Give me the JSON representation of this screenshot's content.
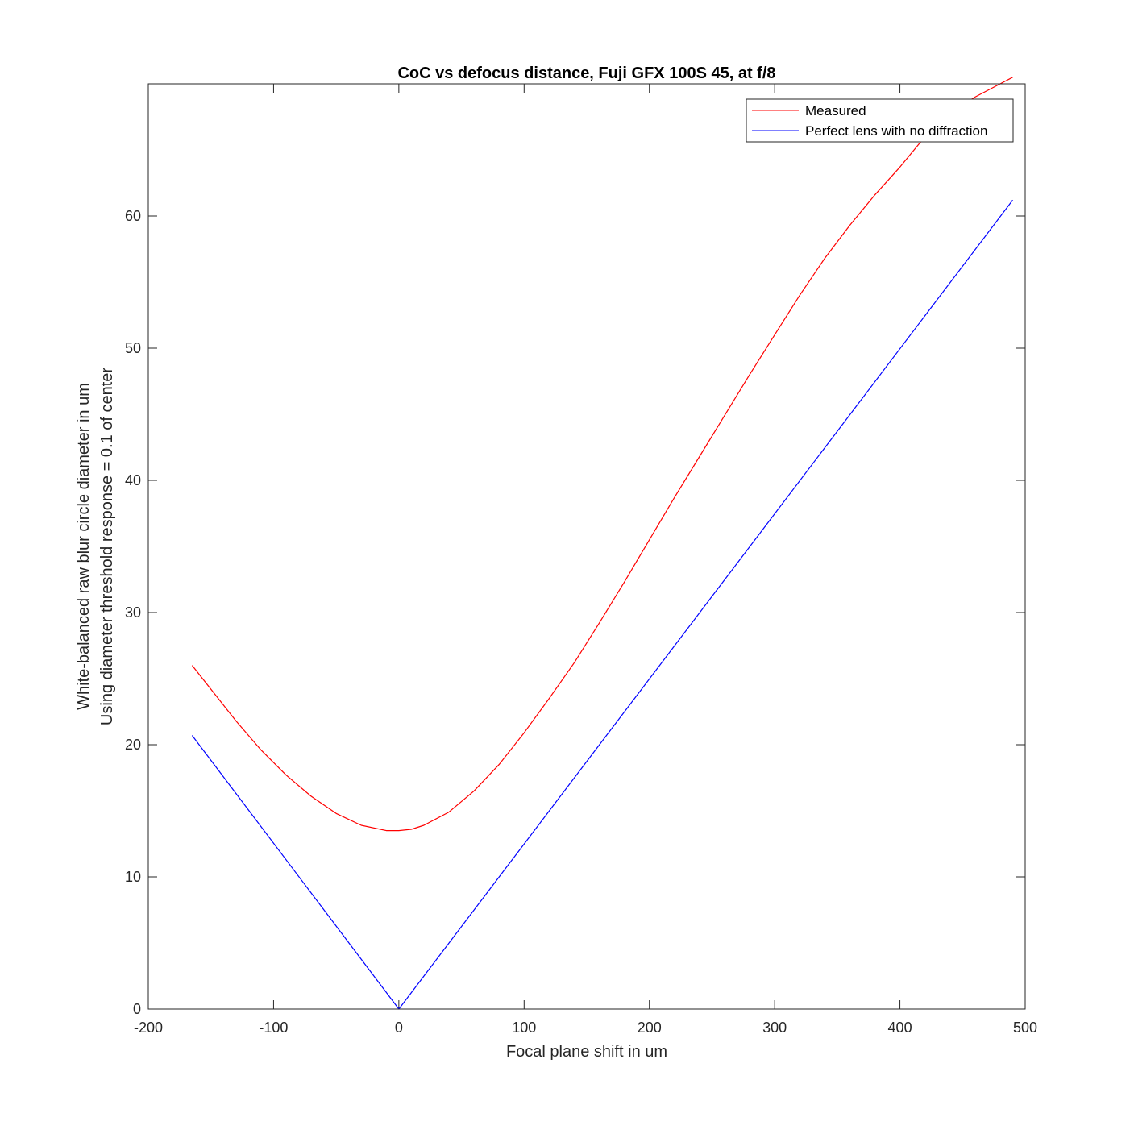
{
  "chart_data": {
    "type": "line",
    "title": "CoC vs defocus distance, Fuji GFX 100S 45, at f/8",
    "xlabel": "Focal plane shift in um",
    "ylabel": [
      "White-balanced raw blur circle diameter in um",
      "Using diameter threshold response = 0.1 of center"
    ],
    "xlim": [
      -200,
      500
    ],
    "ylim": [
      0,
      70
    ],
    "xticks": [
      -200,
      -100,
      0,
      100,
      200,
      300,
      400,
      500
    ],
    "yticks": [
      0,
      10,
      20,
      30,
      40,
      50,
      60
    ],
    "grid": false,
    "legend": "top-right",
    "series": [
      {
        "name": "Measured",
        "color": "#ff0000",
        "x": [
          -165,
          -150,
          -130,
          -110,
          -90,
          -70,
          -50,
          -30,
          -10,
          0,
          10,
          20,
          40,
          60,
          80,
          100,
          120,
          140,
          160,
          180,
          200,
          220,
          240,
          260,
          280,
          300,
          320,
          340,
          360,
          380,
          400,
          420,
          440,
          460,
          480,
          490
        ],
        "y": [
          26.0,
          24.2,
          21.8,
          19.6,
          17.7,
          16.1,
          14.8,
          13.9,
          13.5,
          13.5,
          13.6,
          13.9,
          14.9,
          16.5,
          18.5,
          20.9,
          23.5,
          26.2,
          29.2,
          32.3,
          35.5,
          38.7,
          41.8,
          44.9,
          48.0,
          51.0,
          54.0,
          56.8,
          59.3,
          61.6,
          63.7,
          66.0,
          67.8,
          69.0,
          70.0,
          70.5
        ]
      },
      {
        "name": "Perfect lens with no diffraction",
        "color": "#0000ff",
        "x": [
          -165,
          0,
          490
        ],
        "y": [
          20.7,
          0,
          61.2
        ]
      }
    ]
  }
}
